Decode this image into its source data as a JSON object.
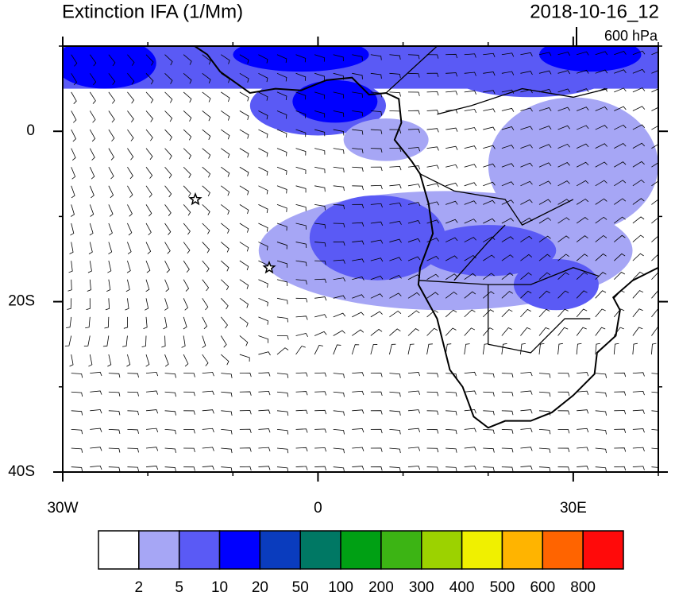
{
  "header": {
    "title": "Extinction IFA (1/Mm)",
    "valid_time": "2018-10-16_12",
    "level": "600 hPa"
  },
  "map": {
    "xlim": [
      -30,
      40
    ],
    "ylim": [
      -40,
      10
    ],
    "xticks": [
      {
        "value": -30,
        "label": "30W"
      },
      0,
      {
        "value": 30,
        "label": "30E"
      }
    ],
    "yticks": [
      0,
      {
        "value": -20,
        "label": "20S"
      },
      {
        "value": -40,
        "label": "40S"
      }
    ]
  },
  "colorbar": {
    "levels": [
      2,
      5,
      10,
      20,
      50,
      100,
      200,
      300,
      400,
      500,
      600,
      800
    ],
    "colors": [
      "#ffffff",
      "#a6a6f5",
      "#5a5af5",
      "#0000ff",
      "#0a3cbe",
      "#007864",
      "#00a014",
      "#3cb414",
      "#9cd200",
      "#f0f000",
      "#ffb400",
      "#ff6400",
      "#ff0a0a"
    ]
  }
}
